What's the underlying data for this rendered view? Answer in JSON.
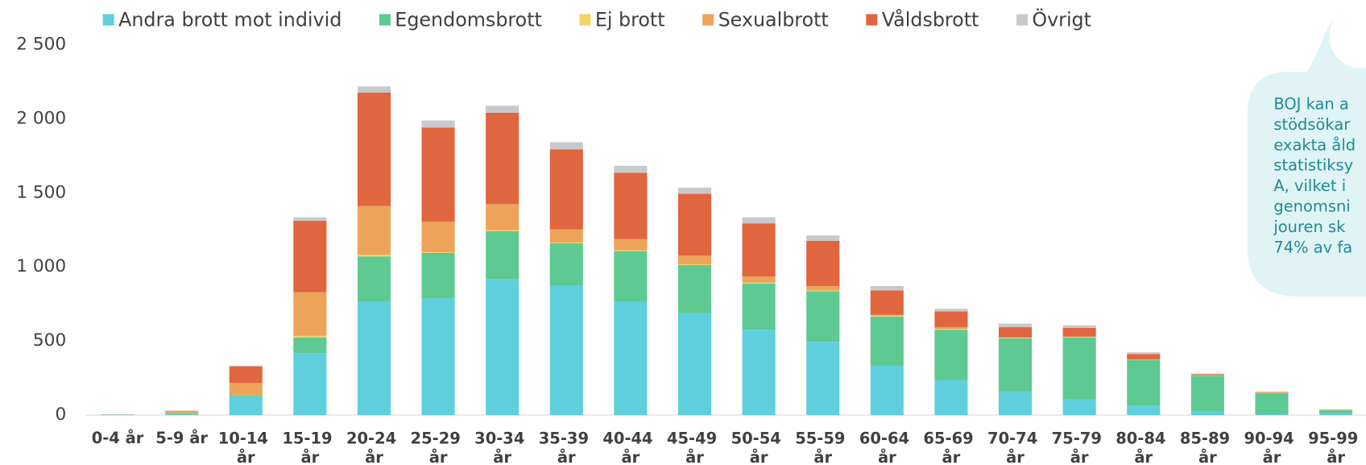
{
  "chart_data": {
    "type": "stacked_bar",
    "categories": [
      "0-4 år",
      "5-9 år",
      "10-14 år",
      "15-19 år",
      "20-24 år",
      "25-29 år",
      "30-34 år",
      "35-39 år",
      "40-44 år",
      "45-49 år",
      "50-54 år",
      "55-59 år",
      "60-64 år",
      "65-69 år",
      "70-74 år",
      "75-79 år",
      "80-84 år",
      "85-89 år",
      "90-94 år",
      "95-99 år"
    ],
    "series": [
      {
        "name": "Andra brott mot individ",
        "color": "#5ecfdc",
        "values": [
          2,
          5,
          124,
          418,
          765,
          788,
          918,
          876,
          765,
          688,
          576,
          494,
          335,
          235,
          159,
          106,
          65,
          24,
          6,
          12
        ]
      },
      {
        "name": "Egendomsbrott",
        "color": "#5ec990",
        "values": [
          1,
          8,
          10,
          106,
          306,
          306,
          323,
          283,
          341,
          324,
          312,
          341,
          330,
          341,
          359,
          418,
          306,
          241,
          141,
          20
        ]
      },
      {
        "name": "Ej brott",
        "color": "#f5d264",
        "values": [
          0,
          1,
          2,
          11,
          11,
          6,
          6,
          6,
          6,
          6,
          6,
          6,
          6,
          6,
          3,
          2,
          2,
          1,
          1,
          0
        ]
      },
      {
        "name": "Sexualbrott",
        "color": "#eea35a",
        "values": [
          0,
          12,
          82,
          294,
          330,
          206,
          177,
          88,
          76,
          58,
          41,
          30,
          5,
          12,
          3,
          4,
          3,
          4,
          5,
          2
        ]
      },
      {
        "name": "Våldsbrott",
        "color": "#df663e",
        "values": [
          1,
          3,
          111,
          483,
          764,
          635,
          617,
          541,
          447,
          418,
          359,
          305,
          165,
          106,
          70,
          58,
          36,
          5,
          2,
          2
        ]
      },
      {
        "name": "Övrigt",
        "color": "#c8c8cf",
        "values": [
          2,
          2,
          5,
          23,
          42,
          47,
          47,
          47,
          47,
          41,
          41,
          36,
          30,
          18,
          24,
          18,
          12,
          6,
          4,
          2
        ]
      }
    ],
    "ylim": [
      0,
      2500
    ],
    "yticks": [
      0,
      500,
      {
        "value": 1000,
        "label": "1 000"
      },
      {
        "value": 1500,
        "label": "1 500"
      },
      {
        "value": 2000,
        "label": "2 000"
      },
      {
        "value": 2500,
        "label": "2 500"
      }
    ],
    "legend": "top",
    "annotation": [
      "BOJ kan a",
      "stödsökar",
      "exakta åld",
      "statistiksy",
      "A, vilket i",
      "genomsni",
      "jouren sk",
      "74% av fa"
    ]
  }
}
